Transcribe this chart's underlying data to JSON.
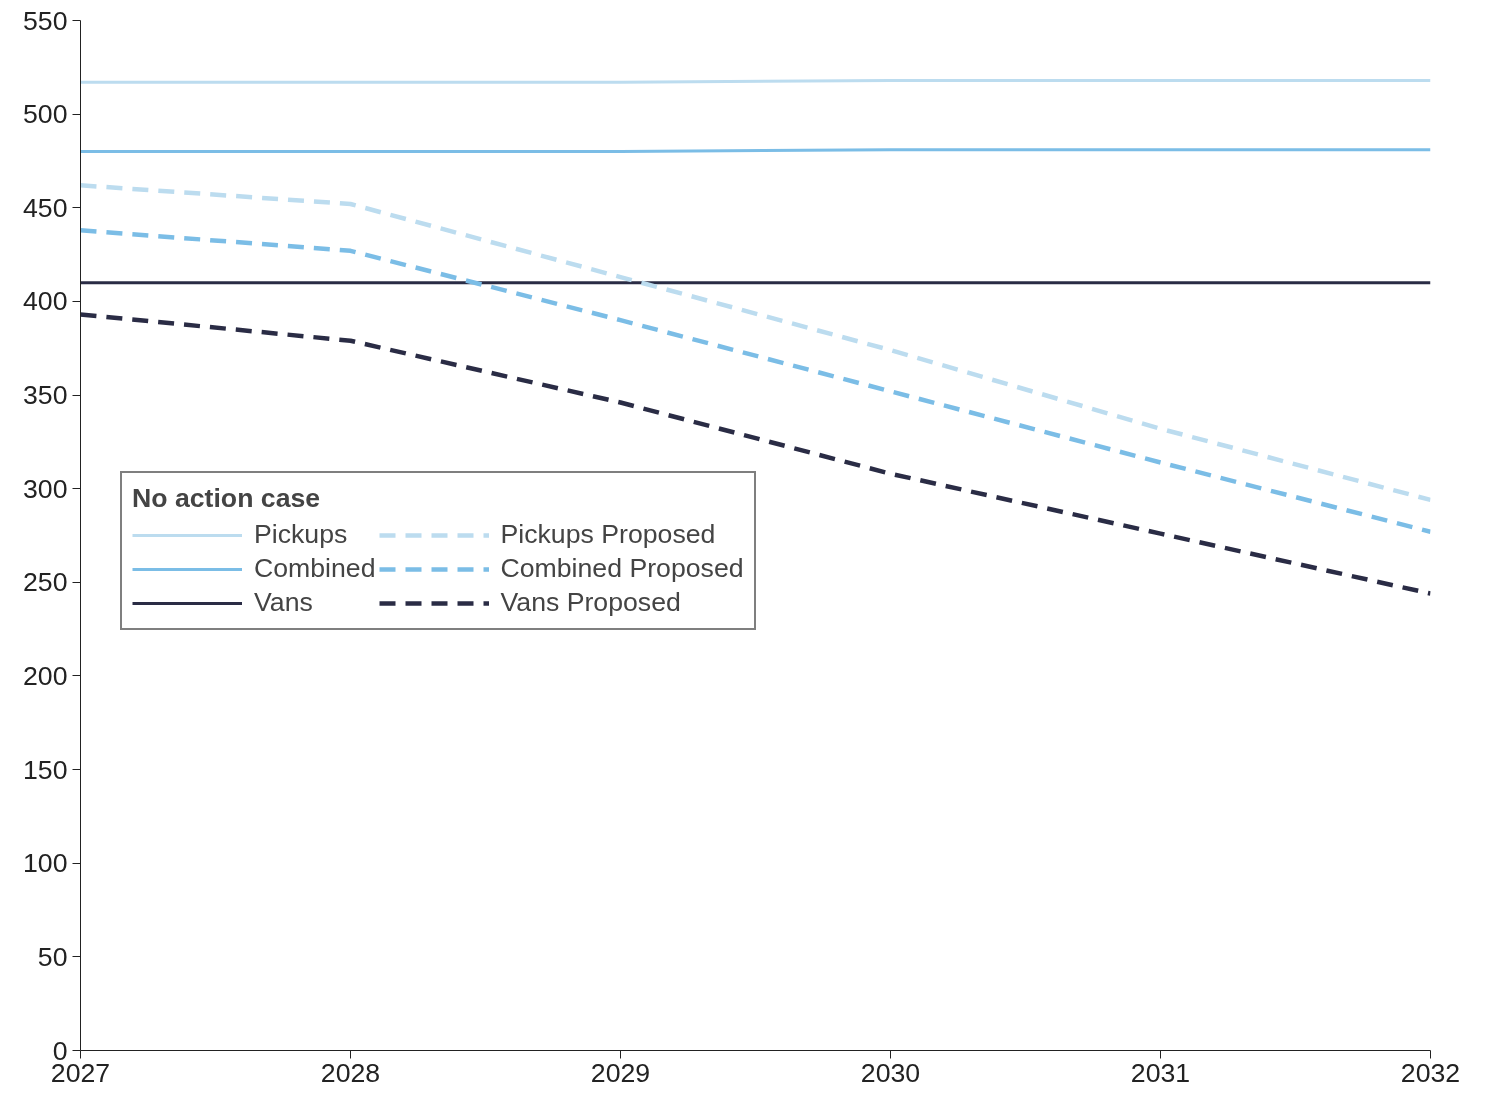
{
  "chart_data": {
    "type": "line",
    "x": [
      2027,
      2028,
      2029,
      2030,
      2031,
      2032
    ],
    "series": [
      {
        "name": "Pickups",
        "color": "#bcdcef",
        "values": [
          517,
          517,
          517,
          518,
          518,
          518
        ],
        "line_style": "solid"
      },
      {
        "name": "Combined",
        "color": "#7bbde6",
        "values": [
          480,
          480,
          480,
          481,
          481,
          481
        ],
        "line_style": "solid"
      },
      {
        "name": "Vans",
        "color": "#2a2c45",
        "values": [
          410,
          410,
          410,
          410,
          410,
          410
        ],
        "line_style": "solid"
      },
      {
        "name": "Pickups Proposed",
        "color": "#bcdcef",
        "values": [
          462,
          452,
          413,
          374,
          332,
          294
        ],
        "line_style": "dashed"
      },
      {
        "name": "Combined Proposed",
        "color": "#7bbde6",
        "values": [
          438,
          427,
          390,
          352,
          314,
          277
        ],
        "line_style": "dashed"
      },
      {
        "name": "Vans Proposed",
        "color": "#2a2c45",
        "values": [
          393,
          379,
          346,
          308,
          276,
          244
        ],
        "line_style": "dashed"
      }
    ],
    "legend_title": "No action case",
    "legend": "left",
    "grid": false,
    "marker": "none",
    "xlim": [
      2027,
      2032
    ],
    "xticks": [
      2027,
      2028,
      2029,
      2030,
      2031,
      2032
    ],
    "ylim": [
      0,
      550
    ],
    "yticks": [
      0,
      50,
      100,
      150,
      200,
      250,
      300,
      350,
      400,
      450,
      500,
      550
    ]
  }
}
